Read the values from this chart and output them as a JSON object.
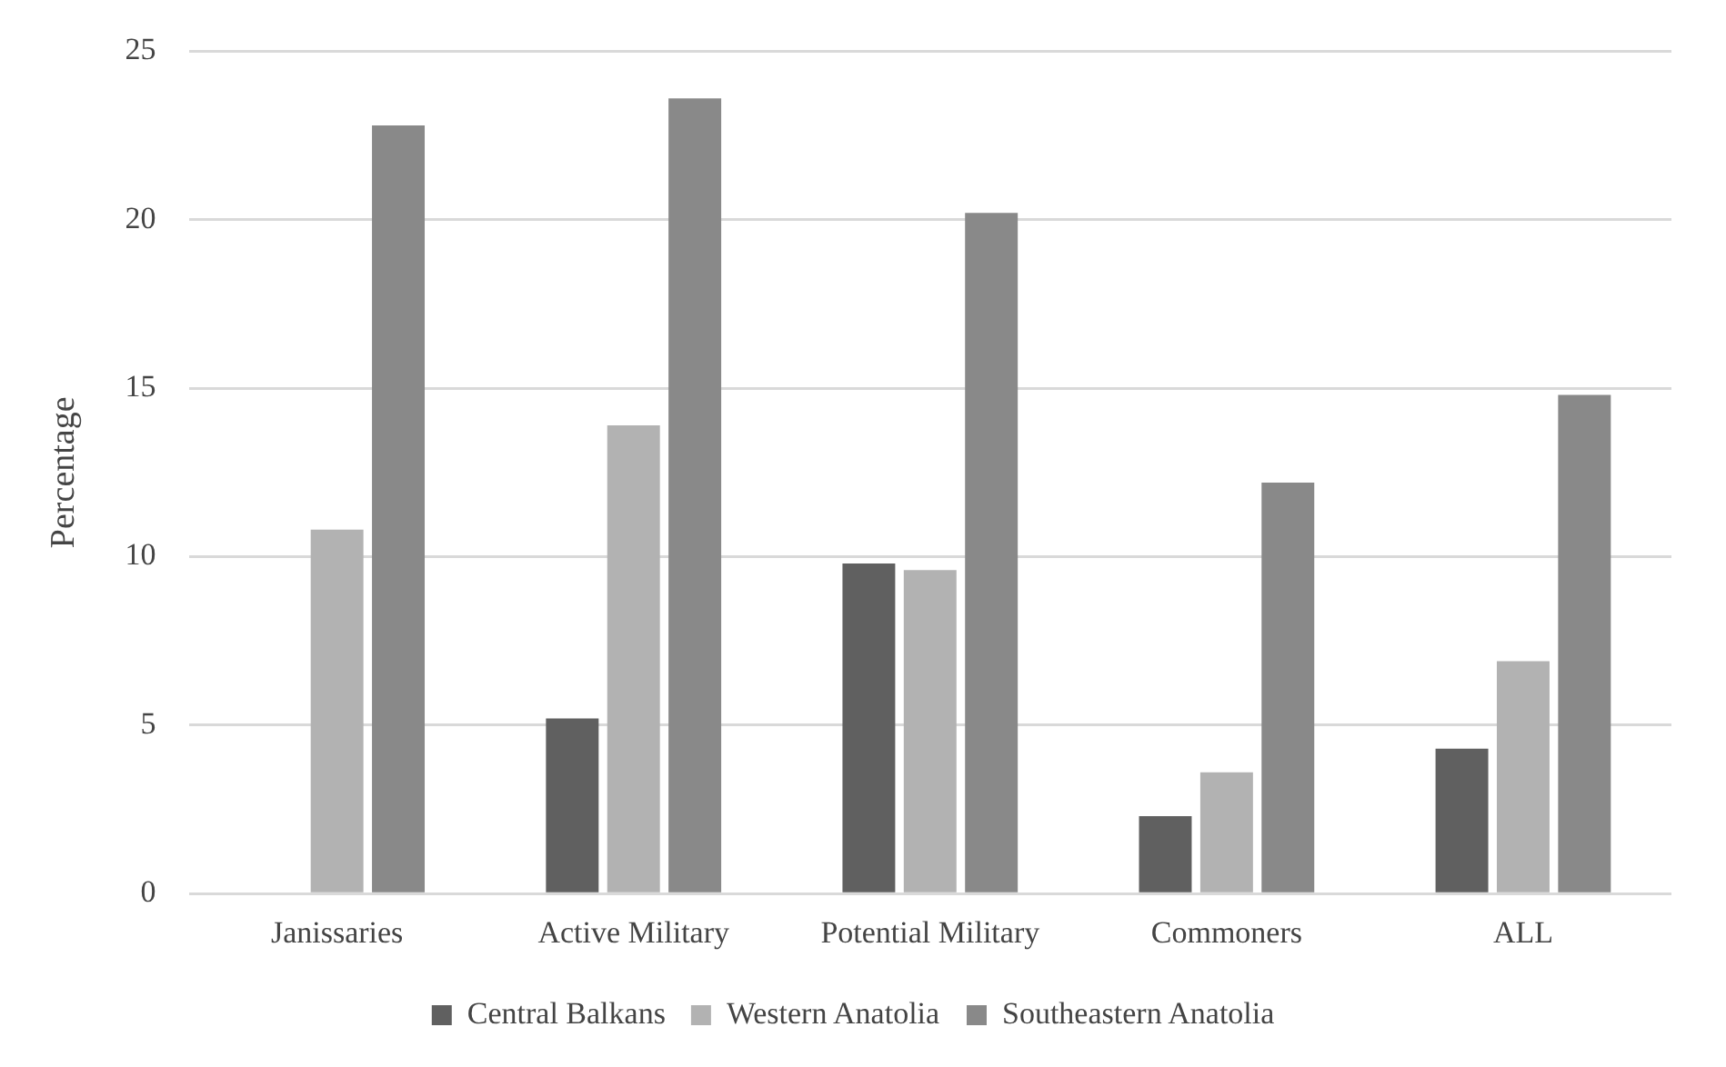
{
  "chart_data": {
    "type": "bar",
    "ylabel": "Percentage",
    "categories": [
      "Janissaries",
      "Active Military",
      "Potential Military",
      "Commoners",
      "ALL"
    ],
    "series": [
      {
        "name": "Central Balkans",
        "color": "#606060",
        "values": [
          0,
          5.2,
          9.8,
          2.3,
          4.3
        ]
      },
      {
        "name": "Western Anatolia",
        "color": "#b2b2b2",
        "values": [
          10.8,
          13.9,
          9.6,
          3.6,
          6.9
        ]
      },
      {
        "name": "Southeastern Anatolia",
        "color": "#898989",
        "values": [
          22.8,
          23.6,
          20.2,
          12.2,
          14.8
        ]
      }
    ],
    "ylim": [
      0,
      25
    ],
    "yticks": [
      0,
      5,
      10,
      15,
      20,
      25
    ],
    "grid": "y",
    "legend": "bottom"
  }
}
